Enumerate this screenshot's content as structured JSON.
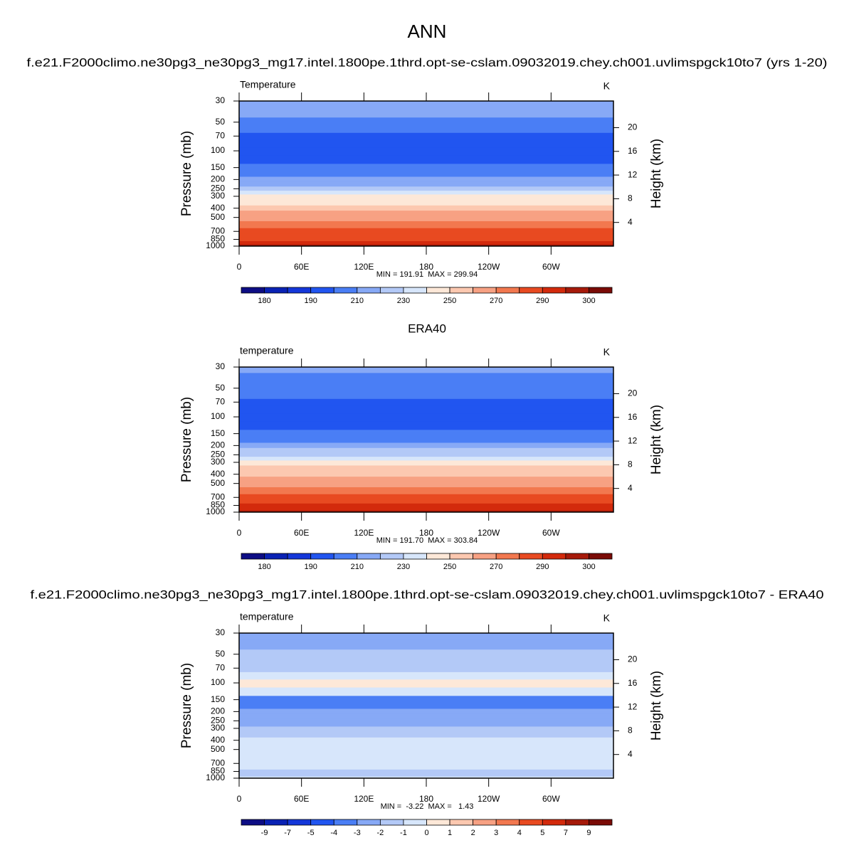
{
  "title": "ANN",
  "chart_data": [
    {
      "type": "contour",
      "title": "f.e21.F2000climo.ne30pg3_ne30pg3_mg17.intel.1800pe.1thrd.opt-se-cslam.09032019.chey.ch001.uvlimspgck10to7 (yrs 1-20)",
      "left_label": "Temperature",
      "right_label": "K",
      "ylabel": "Pressure (mb)",
      "y2label": "Height (km)",
      "stats": "MIN = 191.91  MAX = 299.94",
      "xlim": [
        0,
        360
      ],
      "xticks": [
        0,
        {
          "value": 60,
          "label": "60E"
        },
        {
          "value": 120,
          "label": "120E"
        },
        180,
        {
          "value": 240,
          "label": "120W"
        },
        {
          "value": 300,
          "label": "60W"
        }
      ],
      "ylim": [
        1000,
        30
      ],
      "log_y": true,
      "yticks": [
        30,
        50,
        70,
        100,
        150,
        200,
        250,
        300,
        400,
        500,
        700,
        850,
        1000
      ],
      "y2lim": [
        0,
        24.5
      ],
      "y2ticks": [
        4,
        8,
        12,
        16,
        20
      ],
      "field": {
        "pressure": [
          30,
          40,
          50,
          60,
          70,
          85,
          100,
          125,
          150,
          175,
          200,
          225,
          250,
          275,
          300,
          350,
          400,
          450,
          500,
          600,
          700,
          775,
          850,
          925,
          1000
        ],
        "values": [
          215,
          212,
          205,
          203,
          197,
          195,
          194,
          195,
          203,
          207,
          214,
          219,
          225,
          233,
          242,
          249,
          256,
          261,
          266,
          274,
          281,
          285,
          289,
          292,
          296
        ]
      },
      "colorbar": {
        "levels": [
          180,
          185,
          190,
          200,
          210,
          220,
          230,
          240,
          250,
          260,
          270,
          280,
          290,
          295,
          300
        ],
        "ticks": [
          180,
          190,
          210,
          230,
          250,
          270,
          290,
          300
        ],
        "colors": [
          "#0d0d84",
          "#0a22b4",
          "#1437d9",
          "#2155f0",
          "#4a7ef5",
          "#87a9f6",
          "#b3c9f7",
          "#d7e6fb",
          "#fde8d8",
          "#fcc8b0",
          "#f7a183",
          "#f2784f",
          "#e84a21",
          "#d32a0c",
          "#a61a0a",
          "#7a0b06"
        ]
      }
    },
    {
      "type": "contour",
      "title": "ERA40",
      "left_label": "temperature",
      "right_label": "K",
      "ylabel": "Pressure (mb)",
      "y2label": "Height (km)",
      "stats": "MIN = 191.70  MAX = 303.84",
      "xlim": [
        0,
        360
      ],
      "xticks": [
        0,
        {
          "value": 60,
          "label": "60E"
        },
        {
          "value": 120,
          "label": "120E"
        },
        180,
        {
          "value": 240,
          "label": "120W"
        },
        {
          "value": 300,
          "label": "60W"
        }
      ],
      "ylim": [
        1000,
        30
      ],
      "log_y": true,
      "yticks": [
        30,
        50,
        70,
        100,
        150,
        200,
        250,
        300,
        400,
        500,
        700,
        850,
        1000
      ],
      "y2lim": [
        0,
        24.5
      ],
      "y2ticks": [
        4,
        8,
        12,
        16,
        20
      ],
      "field": {
        "pressure": [
          30,
          40,
          50,
          60,
          70,
          85,
          100,
          125,
          150,
          175,
          200,
          225,
          250,
          275,
          300,
          350,
          400,
          450,
          500,
          600,
          700,
          775,
          850,
          925,
          1000
        ],
        "values": [
          214,
          209,
          204,
          202,
          197,
          195,
          195,
          197,
          205,
          209,
          216,
          221,
          227,
          235,
          243,
          251,
          258,
          263,
          268,
          276,
          283,
          287,
          291,
          294,
          298
        ]
      },
      "colorbar": {
        "levels": [
          180,
          185,
          190,
          200,
          210,
          220,
          230,
          240,
          250,
          260,
          270,
          280,
          290,
          295,
          300
        ],
        "ticks": [
          180,
          190,
          210,
          230,
          250,
          270,
          290,
          300
        ],
        "colors": [
          "#0d0d84",
          "#0a22b4",
          "#1437d9",
          "#2155f0",
          "#4a7ef5",
          "#87a9f6",
          "#b3c9f7",
          "#d7e6fb",
          "#fde8d8",
          "#fcc8b0",
          "#f7a183",
          "#f2784f",
          "#e84a21",
          "#d32a0c",
          "#a61a0a",
          "#7a0b06"
        ]
      }
    },
    {
      "type": "contour",
      "title": "f.e21.F2000climo.ne30pg3_ne30pg3_mg17.intel.1800pe.1thrd.opt-se-cslam.09032019.chey.ch001.uvlimspgck10to7 - ERA40",
      "left_label": "temperature",
      "right_label": "K",
      "ylabel": "Pressure (mb)",
      "y2label": "Height (km)",
      "stats": "MIN =  -3.22  MAX =   1.43",
      "xlim": [
        0,
        360
      ],
      "xticks": [
        0,
        {
          "value": 60,
          "label": "60E"
        },
        {
          "value": 120,
          "label": "120E"
        },
        180,
        {
          "value": 240,
          "label": "120W"
        },
        {
          "value": 300,
          "label": "60W"
        }
      ],
      "ylim": [
        1000,
        30
      ],
      "log_y": true,
      "yticks": [
        30,
        50,
        70,
        100,
        150,
        200,
        250,
        300,
        400,
        500,
        700,
        850,
        1000
      ],
      "y2lim": [
        0,
        24.5
      ],
      "y2ticks": [
        4,
        8,
        12,
        16,
        20
      ],
      "field": {
        "pressure": [
          30,
          40,
          50,
          60,
          70,
          85,
          100,
          125,
          150,
          175,
          200,
          225,
          250,
          275,
          300,
          350,
          400,
          450,
          500,
          600,
          700,
          775,
          850,
          925,
          1000
        ],
        "values": [
          -2.5,
          -2.2,
          -1.5,
          -1.2,
          -1.5,
          -0.5,
          0.3,
          -0.8,
          -3.2,
          -3.1,
          -2.8,
          -2.6,
          -2.4,
          -2.2,
          -1.6,
          -1.5,
          -0.6,
          -0.5,
          -0.5,
          -0.5,
          -0.5,
          -0.6,
          -1.5,
          -1.3,
          -0.7
        ]
      },
      "colorbar": {
        "levels": [
          -9,
          -7,
          -5,
          -4,
          -3,
          -2,
          -1,
          0,
          1,
          2,
          3,
          4,
          5,
          7,
          9
        ],
        "ticks": [
          -9,
          -7,
          -5,
          -4,
          -3,
          -2,
          -1,
          0,
          1,
          2,
          3,
          4,
          5,
          7,
          9
        ],
        "colors": [
          "#0d0d84",
          "#0a22b4",
          "#1437d9",
          "#2155f0",
          "#4a7ef5",
          "#87a9f6",
          "#b3c9f7",
          "#d7e6fb",
          "#fde8d8",
          "#fcc8b0",
          "#f7a183",
          "#f2784f",
          "#e84a21",
          "#d32a0c",
          "#a61a0a",
          "#7a0b06"
        ]
      }
    }
  ]
}
